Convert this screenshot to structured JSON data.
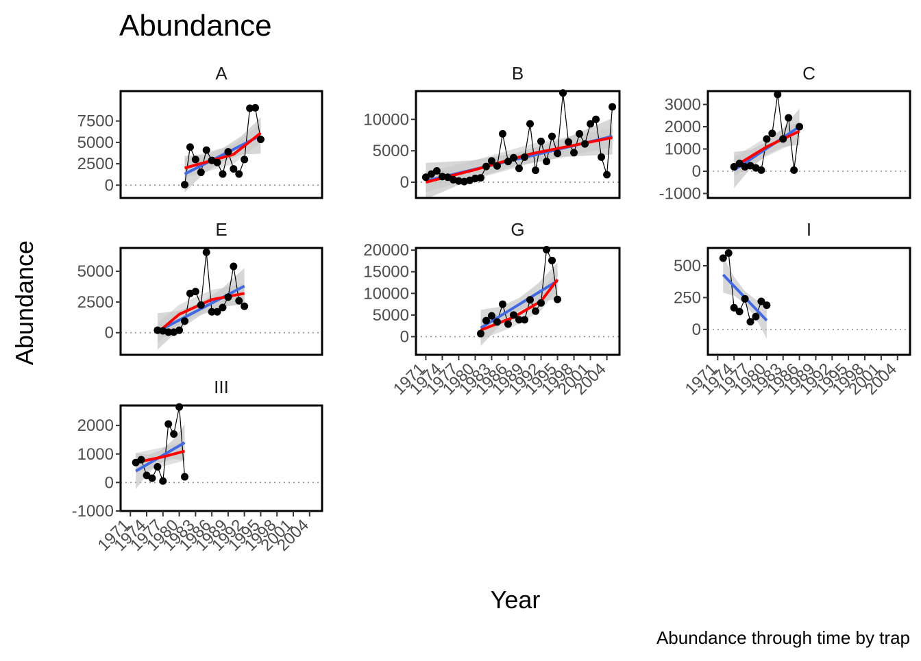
{
  "chart_data": {
    "type": "line",
    "title": "Abundance",
    "xlabel": "Year",
    "ylabel": "Abundance",
    "caption": "Abundance through time by trap",
    "x_ticks": [
      1971,
      1974,
      1977,
      1980,
      1983,
      1986,
      1989,
      1992,
      1995,
      1998,
      2001,
      2004
    ],
    "x_tick_labels": [
      "1971",
      "1974",
      "1977",
      "1980",
      "1983",
      "1986",
      "1989",
      "1992",
      "1995",
      "1998",
      "2001",
      "2004"
    ],
    "xlim": [
      1969.2,
      2006.3
    ],
    "grid": false,
    "reference_line": 0,
    "panels": [
      {
        "name": "A",
        "ylim": [
          -1500,
          11000
        ],
        "yticks": [
          0,
          2500,
          5000,
          7500
        ],
        "ytick_labels": [
          "0",
          "2500",
          "5000",
          "7500"
        ],
        "x": [
          1981,
          1982,
          1983,
          1984,
          1985,
          1986,
          1987,
          1988,
          1989,
          1990,
          1991,
          1992,
          1993,
          1994,
          1995
        ],
        "y": [
          50,
          4450,
          3000,
          1500,
          4100,
          2900,
          2650,
          1300,
          3900,
          1900,
          1300,
          3000,
          9000,
          9050,
          5350
        ],
        "linear_fit": [
          [
            1981,
            1300
          ],
          [
            1995,
            5800
          ]
        ],
        "curve_fit": [
          [
            1981,
            2000
          ],
          [
            1985,
            2700
          ],
          [
            1990,
            3600
          ],
          [
            1995,
            6100
          ]
        ]
      },
      {
        "name": "B",
        "ylim": [
          -2500,
          14500
        ],
        "yticks": [
          0,
          5000,
          10000
        ],
        "ytick_labels": [
          "0",
          "5000",
          "10000"
        ],
        "x": [
          1971,
          1972,
          1973,
          1974,
          1975,
          1976,
          1977,
          1978,
          1979,
          1980,
          1981,
          1982,
          1983,
          1984,
          1985,
          1986,
          1987,
          1988,
          1989,
          1990,
          1991,
          1992,
          1993,
          1994,
          1995,
          1996,
          1997,
          1998,
          1999,
          2000,
          2001,
          2002,
          2003,
          2004,
          2005
        ],
        "y": [
          800,
          1300,
          1800,
          900,
          800,
          400,
          200,
          100,
          300,
          600,
          700,
          2500,
          3400,
          2600,
          7700,
          3300,
          3900,
          2200,
          4000,
          9300,
          1900,
          6500,
          3300,
          7300,
          4600,
          14200,
          6400,
          4700,
          7700,
          6100,
          9300,
          10000,
          4000,
          1200,
          12000
        ],
        "linear_fit": [
          [
            1971,
            200
          ],
          [
            2005,
            7300
          ]
        ],
        "curve_fit": [
          [
            1971,
            0
          ],
          [
            1980,
            2000
          ],
          [
            1990,
            4500
          ],
          [
            2005,
            7100
          ]
        ]
      },
      {
        "name": "C",
        "ylim": [
          -1200,
          3600
        ],
        "yticks": [
          -1000,
          0,
          1000,
          2000,
          3000
        ],
        "ytick_labels": [
          "-1000",
          "0",
          "1000",
          "2000",
          "3000"
        ],
        "x": [
          1974,
          1975,
          1976,
          1977,
          1978,
          1979,
          1980,
          1981,
          1982,
          1983,
          1984,
          1985
        ],
        "y": [
          200,
          350,
          200,
          250,
          150,
          50,
          1450,
          1700,
          3450,
          1450,
          2400,
          50
        ],
        "x_extra": [
          1986
        ],
        "y_extra": [
          2000
        ],
        "linear_fit": [
          [
            1974,
            50
          ],
          [
            1986,
            2000
          ]
        ],
        "curve_fit": [
          [
            1974,
            200
          ],
          [
            1980,
            1100
          ],
          [
            1986,
            1800
          ]
        ]
      },
      {
        "name": "E",
        "ylim": [
          -1800,
          6900
        ],
        "yticks": [
          0,
          2500,
          5000
        ],
        "ytick_labels": [
          "0",
          "2500",
          "5000"
        ],
        "x": [
          1976,
          1977,
          1978,
          1979,
          1980,
          1981,
          1982,
          1983,
          1984,
          1985,
          1986,
          1987,
          1988,
          1989,
          1990,
          1991,
          1992
        ],
        "y": [
          200,
          150,
          50,
          50,
          200,
          950,
          3200,
          3350,
          2250,
          6550,
          1700,
          1700,
          2050,
          2900,
          5400,
          2600,
          2150
        ],
        "linear_fit": [
          [
            1976,
            100
          ],
          [
            1992,
            3800
          ]
        ],
        "curve_fit": [
          [
            1976,
            0
          ],
          [
            1980,
            1500
          ],
          [
            1986,
            2700
          ],
          [
            1992,
            3200
          ]
        ]
      },
      {
        "name": "G",
        "ylim": [
          -4200,
          20500
        ],
        "yticks": [
          0,
          5000,
          10000,
          15000,
          20000
        ],
        "ytick_labels": [
          "0",
          "5000",
          "10000",
          "15000",
          "20000"
        ],
        "x": [
          1981,
          1982,
          1983,
          1984,
          1985,
          1986,
          1987,
          1988,
          1989,
          1990,
          1991,
          1992,
          1993,
          1994,
          1995
        ],
        "y": [
          700,
          3700,
          4800,
          3400,
          7500,
          2900,
          5000,
          3900,
          3900,
          8500,
          5900,
          7800,
          20100,
          17600,
          8600
        ],
        "linear_fit": [
          [
            1981,
            2000
          ],
          [
            1995,
            12900
          ]
        ],
        "curve_fit": [
          [
            1981,
            1500
          ],
          [
            1987,
            4500
          ],
          [
            1992,
            8200
          ],
          [
            1995,
            13200
          ]
        ]
      },
      {
        "name": "I",
        "ylim": [
          -200,
          640
        ],
        "yticks": [
          0,
          250,
          500
        ],
        "ytick_labels": [
          "0",
          "250",
          "500"
        ],
        "x": [
          1972,
          1973,
          1974,
          1975,
          1976,
          1977,
          1978,
          1979,
          1980
        ],
        "y": [
          560,
          600,
          170,
          140,
          240,
          60,
          100,
          220,
          190
        ],
        "linear_fit": [
          [
            1972,
            430
          ],
          [
            1980,
            70
          ]
        ],
        "curve_fit": []
      },
      {
        "name": "III",
        "ylim": [
          -1000,
          2700
        ],
        "yticks": [
          -1000,
          0,
          1000,
          2000
        ],
        "ytick_labels": [
          "-1000",
          "0",
          "1000",
          "2000"
        ],
        "x": [
          1972,
          1973,
          1974,
          1975,
          1976,
          1977,
          1978,
          1979,
          1980,
          1981
        ],
        "y": [
          700,
          800,
          250,
          150,
          550,
          50,
          2050,
          1700,
          2650,
          200
        ],
        "linear_fit": [
          [
            1972,
            400
          ],
          [
            1981,
            1400
          ]
        ],
        "curve_fit": [
          [
            1972,
            700
          ],
          [
            1977,
            900
          ],
          [
            1981,
            1100
          ]
        ]
      }
    ]
  }
}
